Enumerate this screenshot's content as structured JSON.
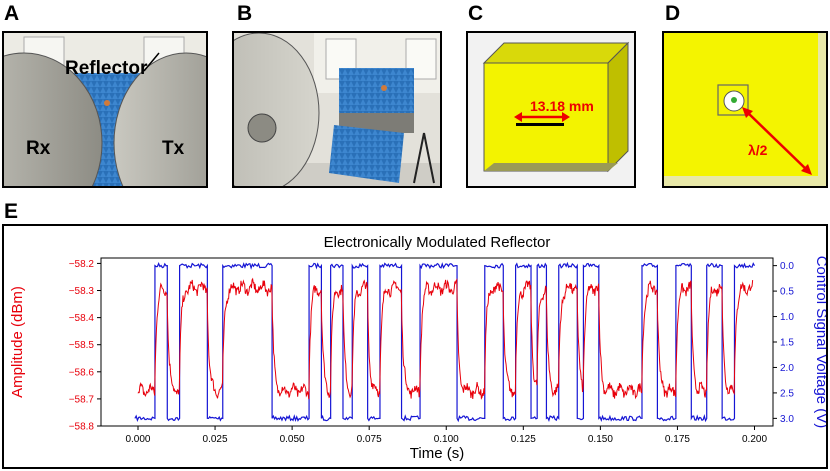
{
  "panels": {
    "a": {
      "letter": "A",
      "labels": {
        "reflector": "Reflector",
        "rx": "Rx",
        "tx": "Tx"
      }
    },
    "b": {
      "letter": "B"
    },
    "c": {
      "letter": "C",
      "dimension": "13.18 mm"
    },
    "d": {
      "letter": "D",
      "dimension": "λ/2"
    },
    "e": {
      "letter": "E"
    }
  },
  "colors": {
    "amplitude": "#e8000b",
    "control": "#1515d4",
    "foam": "#2a70b8",
    "ground": "#e6e600"
  },
  "chart_data": {
    "type": "line",
    "title": "Electronically Modulated Reflector",
    "xlabel": "Time (s)",
    "ylabel_left": "Amplitude (dBm)",
    "ylabel_right": "Control Signal Voltage (V)",
    "xlim": [
      -0.012,
      0.206
    ],
    "ylim_left": [
      -58.8,
      -58.18
    ],
    "ylim_right": [
      3.15,
      -0.15
    ],
    "x_ticks": [
      0.0,
      0.025,
      0.05,
      0.075,
      0.1,
      0.125,
      0.15,
      0.175,
      0.2
    ],
    "x_tick_labels": [
      "0.000",
      "0.025",
      "0.050",
      "0.075",
      "0.100",
      "0.125",
      "0.150",
      "0.175",
      "0.200"
    ],
    "y_left_ticks": [
      -58.2,
      -58.3,
      -58.4,
      -58.5,
      -58.6,
      -58.7,
      -58.8
    ],
    "y_left_tick_labels": [
      "−58.2",
      "−58.3",
      "−58.4",
      "−58.5",
      "−58.6",
      "−58.7",
      "−58.8"
    ],
    "y_right_ticks": [
      0.0,
      0.5,
      1.0,
      1.5,
      2.0,
      2.5,
      3.0
    ],
    "y_right_tick_labels": [
      "0.0",
      "0.5",
      "1.0",
      "1.5",
      "2.0",
      "2.5",
      "3.0"
    ],
    "grid": false,
    "control_segments": [
      {
        "start": -0.001,
        "end": 0.0055,
        "level": "low"
      },
      {
        "start": 0.0055,
        "end": 0.0095,
        "level": "high"
      },
      {
        "start": 0.0095,
        "end": 0.0135,
        "level": "low"
      },
      {
        "start": 0.0135,
        "end": 0.0225,
        "level": "high"
      },
      {
        "start": 0.0225,
        "end": 0.0275,
        "level": "low"
      },
      {
        "start": 0.0275,
        "end": 0.0435,
        "level": "high"
      },
      {
        "start": 0.0435,
        "end": 0.0555,
        "level": "low"
      },
      {
        "start": 0.0555,
        "end": 0.0595,
        "level": "high"
      },
      {
        "start": 0.0595,
        "end": 0.0625,
        "level": "low"
      },
      {
        "start": 0.0625,
        "end": 0.0665,
        "level": "high"
      },
      {
        "start": 0.0665,
        "end": 0.0695,
        "level": "low"
      },
      {
        "start": 0.0695,
        "end": 0.0745,
        "level": "high"
      },
      {
        "start": 0.0745,
        "end": 0.0785,
        "level": "low"
      },
      {
        "start": 0.0785,
        "end": 0.0855,
        "level": "high"
      },
      {
        "start": 0.0855,
        "end": 0.0915,
        "level": "low"
      },
      {
        "start": 0.0915,
        "end": 0.1035,
        "level": "high"
      },
      {
        "start": 0.1035,
        "end": 0.1125,
        "level": "low"
      },
      {
        "start": 0.1125,
        "end": 0.1185,
        "level": "high"
      },
      {
        "start": 0.1185,
        "end": 0.1225,
        "level": "low"
      },
      {
        "start": 0.1225,
        "end": 0.1275,
        "level": "high"
      },
      {
        "start": 0.1275,
        "end": 0.1295,
        "level": "low"
      },
      {
        "start": 0.1295,
        "end": 0.1325,
        "level": "high"
      },
      {
        "start": 0.1325,
        "end": 0.1365,
        "level": "low"
      },
      {
        "start": 0.1365,
        "end": 0.1425,
        "level": "high"
      },
      {
        "start": 0.1425,
        "end": 0.1445,
        "level": "low"
      },
      {
        "start": 0.1445,
        "end": 0.1495,
        "level": "high"
      },
      {
        "start": 0.1495,
        "end": 0.1635,
        "level": "low"
      },
      {
        "start": 0.1635,
        "end": 0.1685,
        "level": "high"
      },
      {
        "start": 0.1685,
        "end": 0.1745,
        "level": "low"
      },
      {
        "start": 0.1745,
        "end": 0.1795,
        "level": "high"
      },
      {
        "start": 0.1795,
        "end": 0.1845,
        "level": "low"
      },
      {
        "start": 0.1845,
        "end": 0.1895,
        "level": "high"
      },
      {
        "start": 0.1895,
        "end": 0.1935,
        "level": "low"
      },
      {
        "start": 0.1935,
        "end": 0.2,
        "level": "high"
      }
    ],
    "amplitude_levels": {
      "high": -58.29,
      "low": -58.67,
      "noise": 0.025
    },
    "series": [
      {
        "axis": "left",
        "color": "#e8000b",
        "line": "amplitude vs time"
      },
      {
        "axis": "right",
        "color": "#1515d4",
        "line": "control voltage vs time",
        "high_volts": 0.0,
        "low_volts": 3.0
      }
    ]
  }
}
